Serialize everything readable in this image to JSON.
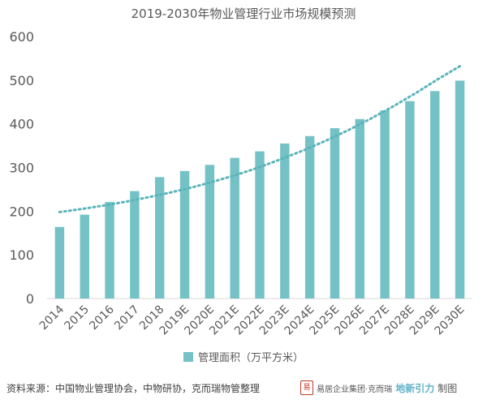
{
  "chart_data": {
    "type": "bar",
    "title": "2019-2030年物业管理行业市场规模预测",
    "categories": [
      "2014",
      "2015",
      "2016",
      "2017",
      "2018",
      "2019E",
      "2020E",
      "2021E",
      "2022E",
      "2023E",
      "2024E",
      "2025E",
      "2026E",
      "2027E",
      "2028E",
      "2029E",
      "2030E"
    ],
    "series": [
      {
        "name": "管理面积（万平方米）",
        "values": [
          164,
          192,
          221,
          246,
          278,
          292,
          306,
          322,
          337,
          355,
          372,
          390,
          411,
          431,
          452,
          475,
          499
        ],
        "color": "#74c2c6"
      }
    ],
    "trendline": {
      "style": "dotted",
      "color": "#5ab4b9",
      "values": [
        198,
        205,
        213,
        222,
        232,
        243,
        255,
        269,
        284,
        301,
        320,
        340,
        362,
        386,
        412,
        440,
        470,
        502,
        532
      ]
    },
    "ylim": [
      0,
      600
    ],
    "yticks": [
      "0",
      "100",
      "200",
      "300",
      "400",
      "500",
      "600"
    ],
    "grid": false,
    "legend_position": "bottom",
    "xlabel": "",
    "ylabel": ""
  },
  "footer": {
    "source": "资料来源：中国物业管理协会，中物研协，克而瑞物管整理",
    "credit_seal": "易",
    "credit_company": "易居企业集团·克而瑞",
    "credit_brand": "地新引力",
    "credit_suffix": "制图"
  }
}
